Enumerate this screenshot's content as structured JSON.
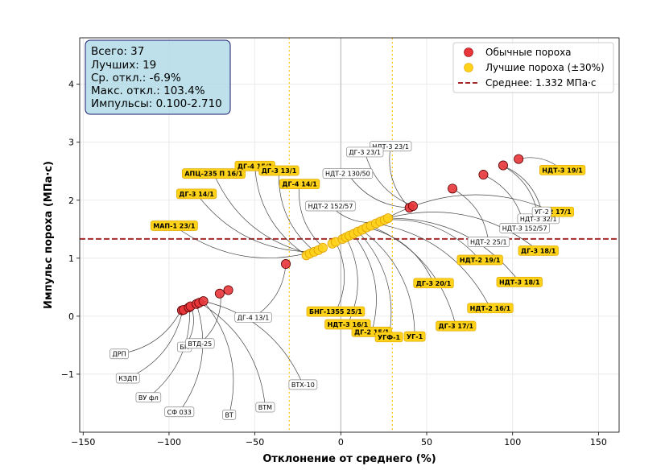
{
  "chart_data": {
    "type": "scatter",
    "xlabel": "Отклонение от среднего (%)",
    "ylabel": "Импульс пороха (МПа·с)",
    "xlim": [
      -152,
      162
    ],
    "ylim": [
      -2.0,
      4.8
    ],
    "xticks": [
      -150,
      -100,
      -50,
      0,
      50,
      100,
      150
    ],
    "yticks": [
      -1,
      0,
      1,
      2,
      3,
      4
    ],
    "ytick_labels": [
      "−1",
      "0",
      "1",
      "2",
      "3",
      "4"
    ],
    "mean_impulse": 1.332,
    "tolerance_band_pct": [
      -30,
      30
    ],
    "grid": true,
    "legend": {
      "position": "top-right",
      "entries": [
        {
          "label": "Обычные пороха",
          "color": "#e8363b"
        },
        {
          "label": "Лучшие пороха (±30%)",
          "color": "#ffd21a"
        },
        {
          "label": "Среднее: 1.332 МПа·с",
          "color": "#a52a2a"
        }
      ]
    },
    "stats": [
      "Всего: 37",
      "Лучших: 19",
      "Ср. откл.: -6.9%",
      "Макс. откл.: 103.4%",
      "Импульсы: 0.100-2.710"
    ],
    "series": [
      {
        "name": "Обычные пороха",
        "color": "#e8363b",
        "points": [
          {
            "x": -92.5,
            "y": 0.1
          },
          {
            "x": -91.5,
            "y": 0.11
          },
          {
            "x": -88.5,
            "y": 0.15
          },
          {
            "x": -87.5,
            "y": 0.17
          },
          {
            "x": -84.0,
            "y": 0.21
          },
          {
            "x": -82.5,
            "y": 0.23
          },
          {
            "x": -80.0,
            "y": 0.26
          },
          {
            "x": -70.5,
            "y": 0.39
          },
          {
            "x": -65.5,
            "y": 0.45
          },
          {
            "x": -32.0,
            "y": 0.9
          },
          {
            "x": 40.0,
            "y": 1.87
          },
          {
            "x": 42.0,
            "y": 1.9
          },
          {
            "x": 65.0,
            "y": 2.2
          },
          {
            "x": 83.0,
            "y": 2.44
          },
          {
            "x": 94.5,
            "y": 2.6
          },
          {
            "x": 103.5,
            "y": 2.71
          }
        ]
      },
      {
        "name": "Лучшие пороха (±30%)",
        "color": "#ffd21a",
        "points": [
          {
            "x": -20.0,
            "y": 1.05
          },
          {
            "x": -18.0,
            "y": 1.08
          },
          {
            "x": -15.5,
            "y": 1.11
          },
          {
            "x": -13.0,
            "y": 1.14
          },
          {
            "x": -10.5,
            "y": 1.18
          },
          {
            "x": -5.0,
            "y": 1.25
          },
          {
            "x": -3.0,
            "y": 1.28
          },
          {
            "x": 1.0,
            "y": 1.33
          },
          {
            "x": 3.0,
            "y": 1.36
          },
          {
            "x": 5.0,
            "y": 1.39
          },
          {
            "x": 7.5,
            "y": 1.42
          },
          {
            "x": 10.0,
            "y": 1.46
          },
          {
            "x": 12.5,
            "y": 1.49
          },
          {
            "x": 15.0,
            "y": 1.53
          },
          {
            "x": 17.5,
            "y": 1.56
          },
          {
            "x": 20.5,
            "y": 1.6
          },
          {
            "x": 23.0,
            "y": 1.63
          },
          {
            "x": 25.5,
            "y": 1.66
          },
          {
            "x": 27.5,
            "y": 1.69
          }
        ]
      }
    ],
    "annotations": [
      {
        "text": "ДРП",
        "best": false,
        "x": -93,
        "y": 0.1,
        "tx": -129,
        "ty": -0.65
      },
      {
        "text": "КЗДП",
        "best": false,
        "x": -92,
        "y": 0.11,
        "tx": -124,
        "ty": -1.07
      },
      {
        "text": "ВУ фл",
        "best": false,
        "x": -88,
        "y": 0.15,
        "tx": -112,
        "ty": -1.4
      },
      {
        "text": "СФ 033",
        "best": false,
        "x": -84,
        "y": 0.21,
        "tx": -94,
        "ty": -1.65
      },
      {
        "text": "БП",
        "best": false,
        "x": -87,
        "y": 0.17,
        "tx": -91,
        "ty": -0.53
      },
      {
        "text": "ВТД-25",
        "best": false,
        "x": -70,
        "y": 0.39,
        "tx": -82,
        "ty": -0.47
      },
      {
        "text": "ВТ",
        "best": false,
        "x": -80,
        "y": 0.26,
        "tx": -65,
        "ty": -1.7
      },
      {
        "text": "ВТМ",
        "best": false,
        "x": -82,
        "y": 0.23,
        "tx": -44,
        "ty": -1.57
      },
      {
        "text": "ВТХ-10",
        "best": false,
        "x": -80,
        "y": 0.26,
        "tx": -22,
        "ty": -1.18
      },
      {
        "text": "ДГ-4 13/1",
        "best": false,
        "x": -32,
        "y": 0.9,
        "tx": -51,
        "ty": -0.02
      },
      {
        "text": "МАП-1 23/1",
        "best": true,
        "x": -13,
        "y": 1.14,
        "tx": -97,
        "ty": 1.56
      },
      {
        "text": "ДГ-3 14/1",
        "best": true,
        "x": -15,
        "y": 1.11,
        "tx": -84,
        "ty": 2.11
      },
      {
        "text": "АПЦ-235 П 16/1",
        "best": true,
        "x": -18,
        "y": 1.08,
        "tx": -74,
        "ty": 2.46
      },
      {
        "text": "ДГ-4 15/1",
        "best": true,
        "x": -20,
        "y": 1.05,
        "tx": -50,
        "ty": 2.59
      },
      {
        "text": "ДГ-3 13/1",
        "best": true,
        "x": -15,
        "y": 1.11,
        "tx": -36,
        "ty": 2.51
      },
      {
        "text": "ДГ-4 14/1",
        "best": true,
        "x": -10,
        "y": 1.18,
        "tx": -24,
        "ty": 2.28
      },
      {
        "text": "НДТ-3 23/1",
        "best": false,
        "x": 40,
        "y": 1.87,
        "tx": 29,
        "ty": 2.93
      },
      {
        "text": "ДГ-3 23/1",
        "best": false,
        "x": 42,
        "y": 1.9,
        "tx": 14,
        "ty": 2.83
      },
      {
        "text": "НДТ-2 130/50",
        "best": false,
        "x": 40,
        "y": 1.87,
        "tx": 4,
        "ty": 2.46
      },
      {
        "text": "НДТ-2 152/57",
        "best": false,
        "x": 23,
        "y": 1.63,
        "tx": -6,
        "ty": 1.9
      },
      {
        "text": "БНГ-1355 25/1",
        "best": true,
        "x": -3,
        "y": 1.28,
        "tx": -3,
        "ty": 0.08
      },
      {
        "text": "НДТ-3 16/1",
        "best": true,
        "x": 3,
        "y": 1.36,
        "tx": 4,
        "ty": -0.14
      },
      {
        "text": "ДГ-2 15/1",
        "best": true,
        "x": 7,
        "y": 1.42,
        "tx": 18,
        "ty": -0.27
      },
      {
        "text": "УГФ-1",
        "best": true,
        "x": 10,
        "y": 1.46,
        "tx": 28,
        "ty": -0.36
      },
      {
        "text": "УГ-1",
        "best": true,
        "x": 12,
        "y": 1.49,
        "tx": 43,
        "ty": -0.35
      },
      {
        "text": "ДГ-3 20/1",
        "best": true,
        "x": 15,
        "y": 1.53,
        "tx": 54,
        "ty": 0.57
      },
      {
        "text": "ДГ-3 17/1",
        "best": true,
        "x": 17,
        "y": 1.56,
        "tx": 67,
        "ty": -0.17
      },
      {
        "text": "НДТ-2 16/1",
        "best": true,
        "x": 20,
        "y": 1.6,
        "tx": 87,
        "ty": 0.14
      },
      {
        "text": "НДТ-2 19/1",
        "best": true,
        "x": 25,
        "y": 1.66,
        "tx": 81,
        "ty": 0.97
      },
      {
        "text": "НДТ-3 18/1",
        "best": true,
        "x": 27,
        "y": 1.69,
        "tx": 104,
        "ty": 0.59
      },
      {
        "text": "НДТ-2 25/1",
        "best": false,
        "x": 65,
        "y": 2.2,
        "tx": 86,
        "ty": 1.28
      },
      {
        "text": "НДТ-3 152/57",
        "best": false,
        "x": 83,
        "y": 2.44,
        "tx": 107,
        "ty": 1.52
      },
      {
        "text": "ДГ-3 18/1",
        "best": true,
        "x": 27,
        "y": 1.69,
        "tx": 115,
        "ty": 1.13
      },
      {
        "text": "НДТ-3 32/1",
        "best": false,
        "x": 94,
        "y": 2.6,
        "tx": 115,
        "ty": 1.68
      },
      {
        "text": "ДГ-2 17/1",
        "best": true,
        "x": 23,
        "y": 1.63,
        "tx": 124,
        "ty": 1.8
      },
      {
        "text": "УГ-2",
        "best": false,
        "x": 94,
        "y": 2.6,
        "tx": 117,
        "ty": 1.8
      },
      {
        "text": "НДТ-3 19/1",
        "best": true,
        "x": 103,
        "y": 2.71,
        "tx": 129,
        "ty": 2.52
      }
    ]
  }
}
